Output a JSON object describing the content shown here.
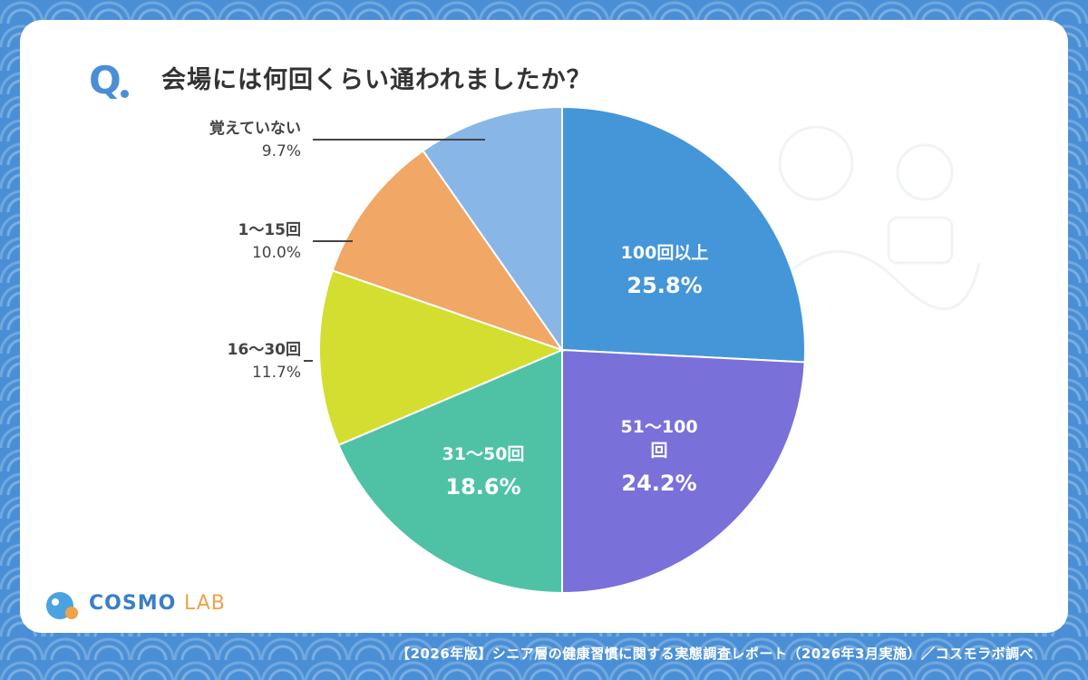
{
  "question": {
    "mark": "Q",
    "text": "会場には何回くらい通われましたか？"
  },
  "chart_data": {
    "type": "pie",
    "start": "12 o'clock",
    "direction": "clockwise",
    "slices": [
      {
        "label": "100回以上",
        "value": 25.8,
        "display": "25.8%",
        "color": "#4496d8",
        "label_position": "inside"
      },
      {
        "label": "51〜100回",
        "label_lines": [
          "51〜100",
          "回"
        ],
        "value": 24.2,
        "display": "24.2%",
        "color": "#7a70d9",
        "label_position": "inside"
      },
      {
        "label": "31〜50回",
        "value": 18.6,
        "display": "18.6%",
        "color": "#4fc2a6",
        "label_position": "inside"
      },
      {
        "label": "16〜30回",
        "value": 11.7,
        "display": "11.7%",
        "color": "#d3de30",
        "label_position": "outside"
      },
      {
        "label": "1〜15回",
        "value": 10.0,
        "display": "10.0%",
        "color": "#f1a766",
        "label_position": "outside"
      },
      {
        "label": "覚えていない",
        "value": 9.7,
        "display": "9.7%",
        "color": "#88b6e7",
        "label_position": "outside"
      }
    ]
  },
  "logo": {
    "brand": "COSMO",
    "suffix": "LAB"
  },
  "footer": "【2026年版】シニア層の健康習慣に関する実態調査レポート（2026年3月実施）／コスモラボ調べ"
}
